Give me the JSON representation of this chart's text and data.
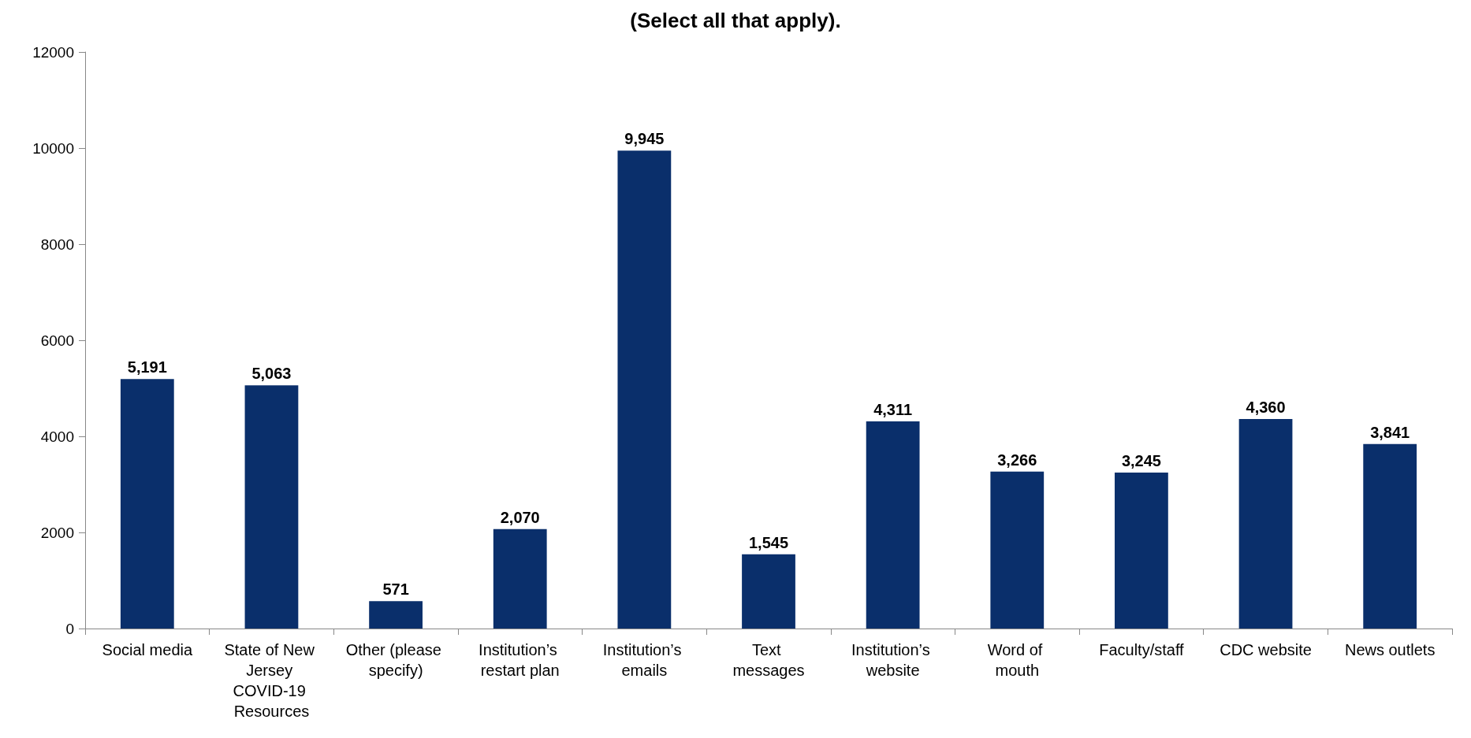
{
  "chart_data": {
    "type": "bar",
    "title": "(Select all that apply).",
    "categories": [
      "Social media",
      "State of New Jersey COVID-19 Resources",
      "Other (please specify)",
      "Institution’s restart plan",
      "Institution’s emails",
      "Text messages",
      "Institution’s website",
      "Word of mouth",
      "Faculty/staff",
      "CDC website",
      "News outlets"
    ],
    "values": [
      5191,
      5063,
      571,
      2070,
      9945,
      1545,
      4311,
      3266,
      3245,
      4360,
      3841
    ],
    "value_labels": [
      "5,191",
      "5,063",
      "571",
      "2,070",
      "9,945",
      "1,545",
      "4,311",
      "3,266",
      "3,245",
      "4,360",
      "3,841"
    ],
    "color": "#0a2f6b",
    "ylim": [
      0,
      12000
    ],
    "yticks": [
      0,
      2000,
      4000,
      6000,
      8000,
      10000,
      12000
    ],
    "grid": false
  }
}
